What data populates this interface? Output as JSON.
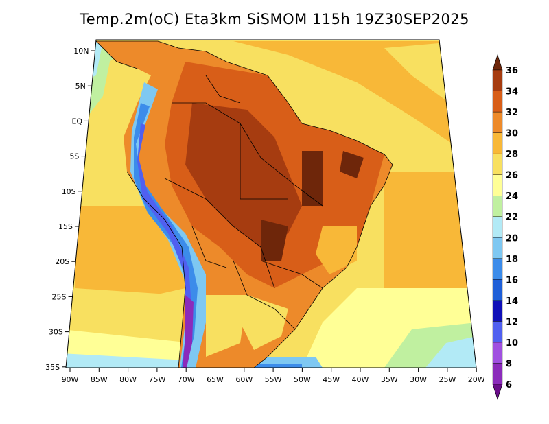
{
  "title": "Temp.2m(oC) Eta3km SiSMOM 115h 19Z30SEP2025",
  "map": {
    "variable": "2 m temperature",
    "units": "oC",
    "region": "South America",
    "lat_ticks": [
      "10N",
      "5N",
      "EQ",
      "5S",
      "10S",
      "15S",
      "20S",
      "25S",
      "30S",
      "35S"
    ],
    "lon_ticks": [
      "90W",
      "85W",
      "80W",
      "75W",
      "70W",
      "65W",
      "60W",
      "55W",
      "50W",
      "45W",
      "40W",
      "35W",
      "30W",
      "25W",
      "20W"
    ]
  },
  "colorbar": {
    "labels": [
      "6",
      "8",
      "10",
      "12",
      "14",
      "16",
      "18",
      "20",
      "22",
      "24",
      "26",
      "28",
      "30",
      "32",
      "34",
      "36"
    ],
    "colors": [
      "#6a0d8a",
      "#8b2bbb",
      "#a050e0",
      "#5060f0",
      "#1010b8",
      "#1f5fd8",
      "#3c8cea",
      "#7ec8f2",
      "#b2eaf6",
      "#c0f0a0",
      "#ffff96",
      "#f8e060",
      "#f8b838",
      "#ed8a2a",
      "#d85e18",
      "#a63c10",
      "#6e260a"
    ]
  }
}
